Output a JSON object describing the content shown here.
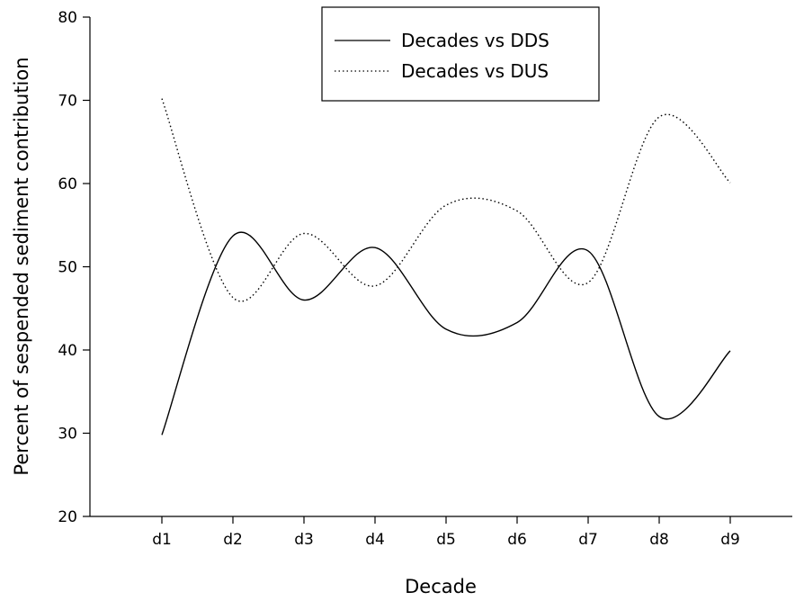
{
  "chart_data": {
    "type": "line",
    "title": "",
    "xlabel": "Decade",
    "ylabel": "Percent of sespended sediment contribution",
    "categories": [
      "d1",
      "d2",
      "d3",
      "d4",
      "d5",
      "d6",
      "d7",
      "d8",
      "d9"
    ],
    "ylim": [
      20,
      80
    ],
    "yticks": [
      20,
      30,
      40,
      50,
      60,
      70,
      80
    ],
    "grid": false,
    "legend_position": "top-center",
    "series": [
      {
        "name": "Decades vs DDS",
        "line_style": "solid",
        "color": "#000000",
        "values": [
          29.8,
          53.7,
          46.0,
          52.3,
          42.5,
          43.3,
          51.9,
          32.0,
          39.9
        ]
      },
      {
        "name": "Decades vs DUS",
        "line_style": "dotted",
        "color": "#000000",
        "values": [
          70.2,
          46.3,
          54.0,
          47.7,
          57.4,
          56.7,
          48.1,
          68.0,
          60.1
        ]
      }
    ]
  }
}
